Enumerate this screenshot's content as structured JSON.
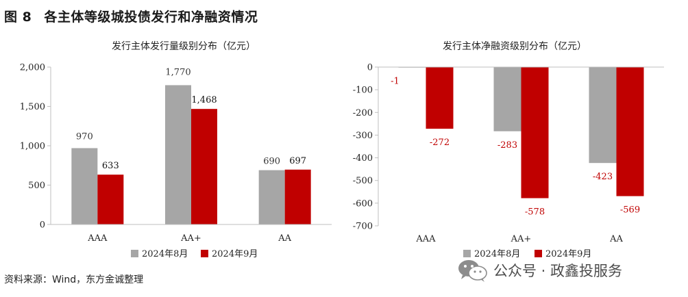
{
  "figure": {
    "label": "图 8",
    "title": "各主体等级城投债发行和净融资情况",
    "source": "资料来源：Wind，东方金诚整理"
  },
  "watermark": {
    "text": "公众号 · 政鑫投服务",
    "icon": "wechat-icon"
  },
  "colors": {
    "aug": "#a6a6a6",
    "sep": "#c00000",
    "axis": "#bfbfbf",
    "text": "#222222"
  },
  "chart_data": [
    {
      "type": "bar",
      "title": "发行主体发行量级别分布（亿元）",
      "categories": [
        "AAA",
        "AA+",
        "AA"
      ],
      "series": [
        {
          "name": "2024年8月",
          "values": [
            970,
            1770,
            690
          ],
          "labels": [
            "970",
            "1,770",
            "690"
          ]
        },
        {
          "name": "2024年9月",
          "values": [
            633,
            1468,
            697
          ],
          "labels": [
            "633",
            "1,468",
            "697"
          ]
        }
      ],
      "ylim": [
        0,
        2000
      ],
      "yticks": [
        0,
        500,
        1000,
        1500,
        2000
      ],
      "ytick_labels": [
        "0",
        "500",
        "1,000",
        "1,500",
        "2,000"
      ],
      "legend": "bottom",
      "grid": false
    },
    {
      "type": "bar",
      "title": "发行主体净融资级别分布（亿元）",
      "categories": [
        "AAA",
        "AA+",
        "AA"
      ],
      "series": [
        {
          "name": "2024年8月",
          "values": [
            -1,
            -283,
            -423
          ],
          "labels": [
            "-1",
            "-283",
            "-423"
          ]
        },
        {
          "name": "2024年9月",
          "values": [
            -272,
            -578,
            -569
          ],
          "labels": [
            "-272",
            "-578",
            "-569"
          ]
        }
      ],
      "ylim": [
        -700,
        0
      ],
      "yticks": [
        0,
        -100,
        -200,
        -300,
        -400,
        -500,
        -600,
        -700
      ],
      "ytick_labels": [
        "0",
        "-100",
        "-200",
        "-300",
        "-400",
        "-500",
        "-600",
        "-700"
      ],
      "legend": "bottom",
      "grid": false
    }
  ]
}
